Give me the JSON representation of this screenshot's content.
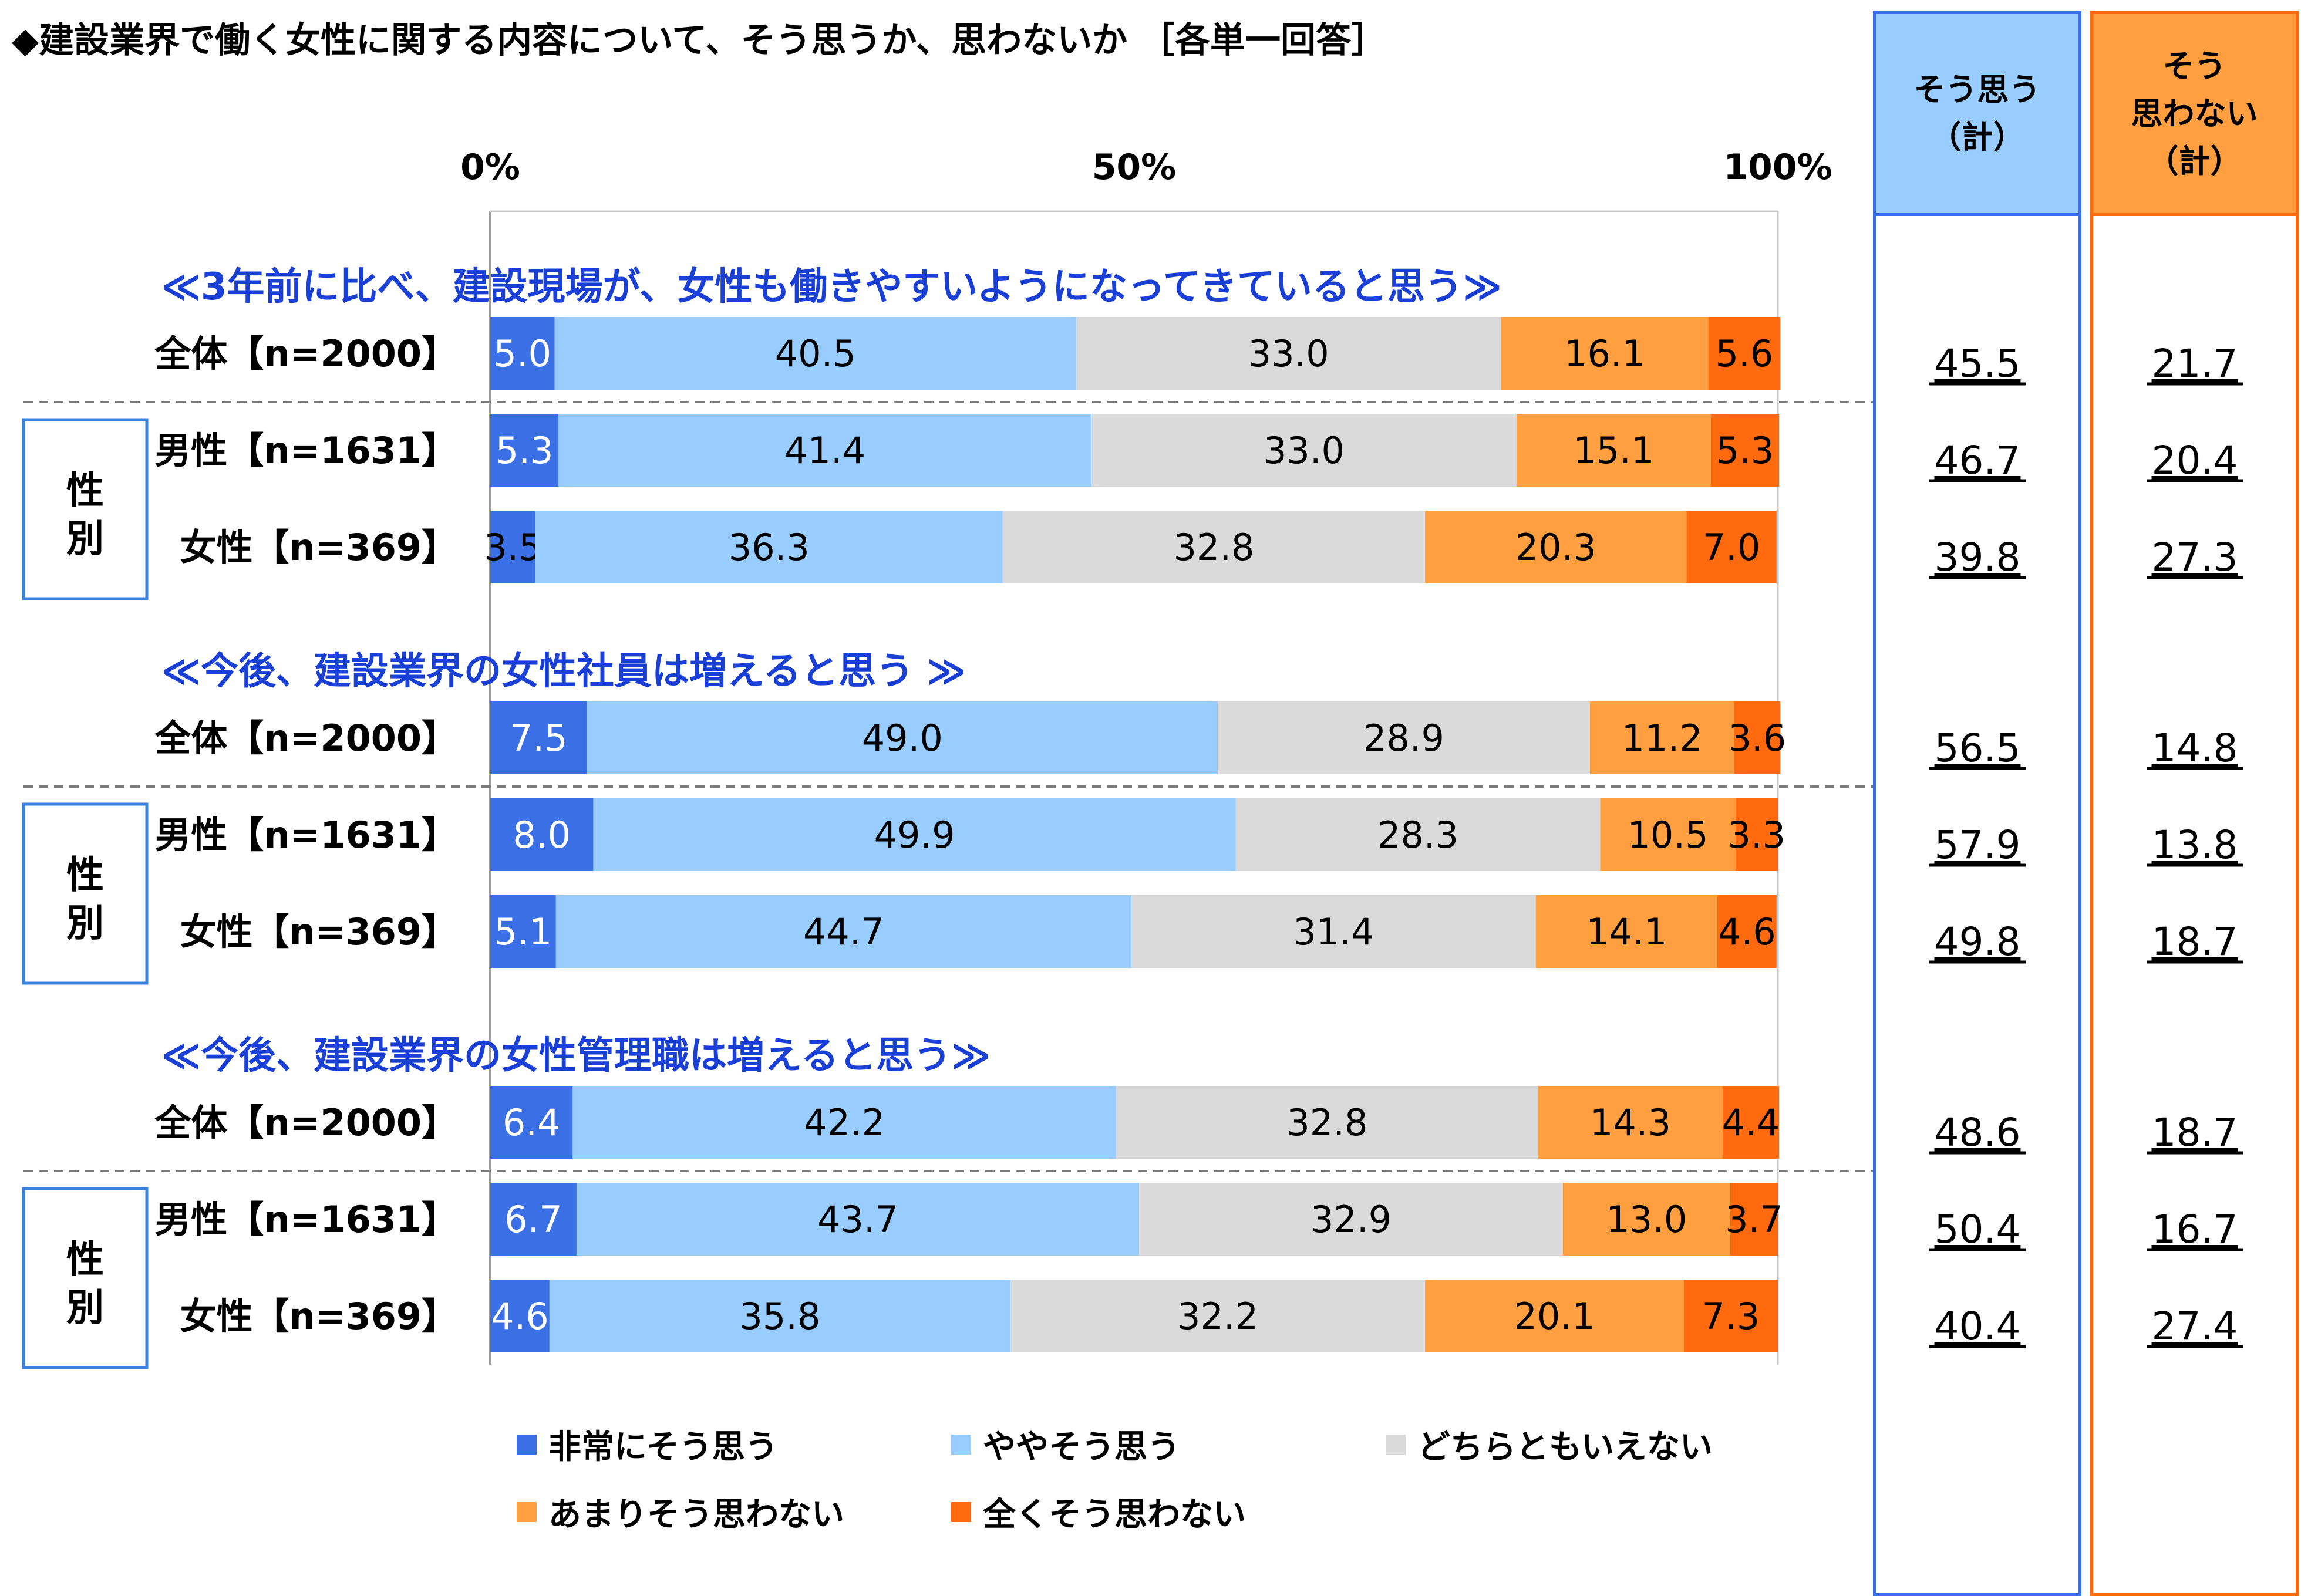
{
  "title": "◆建設業界で働く女性に関する内容について、そう思うか、思わないか ［各単一回答］",
  "summary_headers": {
    "agree": [
      "そう思う",
      "（計）"
    ],
    "disagree": [
      "そう",
      "思わない",
      "（計）"
    ]
  },
  "group_box_label": [
    "性",
    "別"
  ],
  "colors": {
    "strongly_agree": "#3a6fe6",
    "somewhat_agree": "#99ccff",
    "neutral": "#dadada",
    "somewhat_disagree": "#ff9f3f",
    "strongly_disagree": "#ff6a0f",
    "section_heading": "#1a3fd6",
    "agree_panel_border": "#3a6fe6",
    "agree_panel_header": "#99ccff",
    "disagree_panel_border": "#ff6a0f",
    "disagree_panel_header": "#ff9f3f"
  },
  "chart_data": {
    "type": "bar",
    "orientation": "horizontal",
    "stacked": true,
    "percent": true,
    "xlim": [
      0,
      100
    ],
    "x_ticks": [
      "0%",
      "50%",
      "100%"
    ],
    "legend_position": "bottom",
    "series": [
      {
        "name": "非常にそう思う",
        "key": "strongly_agree"
      },
      {
        "name": "ややそう思う",
        "key": "somewhat_agree"
      },
      {
        "name": "どちらともいえない",
        "key": "neutral"
      },
      {
        "name": "あまりそう思わない",
        "key": "somewhat_disagree"
      },
      {
        "name": "全くそう思わない",
        "key": "strongly_disagree"
      }
    ],
    "sections": [
      {
        "heading": "≪3年前に比べ、建設現場が、女性も働きやすいようになってきていると思う≫",
        "rows": [
          {
            "label": "全体【n=2000】",
            "values": [
              5.0,
              40.5,
              33.0,
              16.1,
              5.6
            ],
            "labels": [
              "5.0",
              "40.5",
              "33.0",
              "16.1",
              "5.6"
            ],
            "agree_total": "45.5",
            "disagree_total": "21.7"
          },
          {
            "label": "男性【n=1631】",
            "values": [
              5.3,
              41.4,
              33.0,
              15.1,
              5.3
            ],
            "labels": [
              "5.3",
              "41.4",
              "33.0",
              "15.1",
              "5.3"
            ],
            "agree_total": "46.7",
            "disagree_total": "20.4"
          },
          {
            "label": "女性【n=369】",
            "values": [
              3.5,
              36.3,
              32.8,
              20.3,
              7.0
            ],
            "labels": [
              "3.5",
              "36.3",
              "32.8",
              "20.3",
              "7.0"
            ],
            "agree_total": "39.8",
            "disagree_total": "27.3"
          }
        ]
      },
      {
        "heading": "≪今後、建設業界の女性社員は増えると思う ≫",
        "rows": [
          {
            "label": "全体【n=2000】",
            "values": [
              7.5,
              49.0,
              28.9,
              11.2,
              3.6
            ],
            "labels": [
              "7.5",
              "49.0",
              "28.9",
              "11.2",
              "3.6"
            ],
            "agree_total": "56.5",
            "disagree_total": "14.8"
          },
          {
            "label": "男性【n=1631】",
            "values": [
              8.0,
              49.9,
              28.3,
              10.5,
              3.3
            ],
            "labels": [
              "8.0",
              "49.9",
              "28.3",
              "10.5",
              "3.3"
            ],
            "agree_total": "57.9",
            "disagree_total": "13.8"
          },
          {
            "label": "女性【n=369】",
            "values": [
              5.1,
              44.7,
              31.4,
              14.1,
              4.6
            ],
            "labels": [
              "5.1",
              "44.7",
              "31.4",
              "14.1",
              "4.6"
            ],
            "agree_total": "49.8",
            "disagree_total": "18.7"
          }
        ]
      },
      {
        "heading": "≪今後、建設業界の女性管理職は増えると思う≫",
        "rows": [
          {
            "label": "全体【n=2000】",
            "values": [
              6.4,
              42.2,
              32.8,
              14.3,
              4.4
            ],
            "labels": [
              "6.4",
              "42.2",
              "32.8",
              "14.3",
              "4.4"
            ],
            "agree_total": "48.6",
            "disagree_total": "18.7"
          },
          {
            "label": "男性【n=1631】",
            "values": [
              6.7,
              43.7,
              32.9,
              13.0,
              3.7
            ],
            "labels": [
              "6.7",
              "43.7",
              "32.9",
              "13.0",
              "3.7"
            ],
            "agree_total": "50.4",
            "disagree_total": "16.7"
          },
          {
            "label": "女性【n=369】",
            "values": [
              4.6,
              35.8,
              32.2,
              20.1,
              7.3
            ],
            "labels": [
              "4.6",
              "35.8",
              "32.2",
              "20.1",
              "7.3"
            ],
            "agree_total": "40.4",
            "disagree_total": "27.4"
          }
        ]
      }
    ]
  }
}
